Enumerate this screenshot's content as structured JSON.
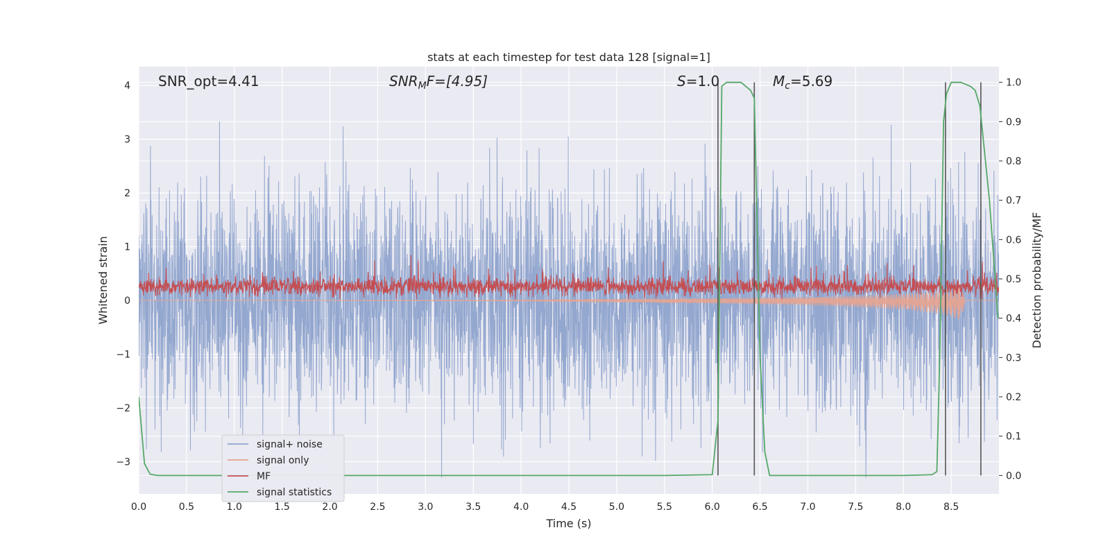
{
  "chart_data": {
    "type": "line",
    "title": "stats at each timestep for test data 128 [signal=1]",
    "xlabel": "Time (s)",
    "ylabel": "Whitened strain",
    "ylabel_right": "Detection probability/MF",
    "xlim": [
      0.0,
      9.0
    ],
    "ylim": [
      -3.6,
      4.35
    ],
    "ylim_right": [
      -0.047,
      1.04
    ],
    "x_ticks": [
      0.0,
      0.5,
      1.0,
      1.5,
      2.0,
      2.5,
      3.0,
      3.5,
      4.0,
      4.5,
      5.0,
      5.5,
      6.0,
      6.5,
      7.0,
      7.5,
      8.0,
      8.5
    ],
    "x_tick_labels": [
      "0.0",
      "0.5",
      "1.0",
      "1.5",
      "2.0",
      "2.5",
      "3.0",
      "3.5",
      "4.0",
      "4.5",
      "5.0",
      "5.5",
      "6.0",
      "6.5",
      "7.0",
      "7.5",
      "8.0",
      "8.5"
    ],
    "y_ticks": [
      -3,
      -2,
      -1,
      0,
      1,
      2,
      3,
      4
    ],
    "y_tick_labels": [
      "−3",
      "−2",
      "−1",
      "0",
      "1",
      "2",
      "3",
      "4"
    ],
    "y_ticks_right": [
      0.0,
      0.1,
      0.2,
      0.3,
      0.4,
      0.5,
      0.6,
      0.7,
      0.8,
      0.9,
      1.0
    ],
    "y_tick_labels_right": [
      "0.0",
      "0.1",
      "0.2",
      "0.3",
      "0.4",
      "0.5",
      "0.6",
      "0.7",
      "0.8",
      "0.9",
      "1.0"
    ],
    "grid": true,
    "legend_placement": "lower-left",
    "annotations": {
      "snr_opt": "SNR_opt=4.41",
      "snr_mf_base": "SNR",
      "snr_mf_sub": "M",
      "snr_mf_rest": "F=[4.95]",
      "s_label": "S",
      "s_rest": "=1.0",
      "mc_base": "M",
      "mc_sub": "c",
      "mc_rest": "=5.69"
    },
    "vertical_lines_x": [
      6.06,
      6.44,
      8.44,
      8.81
    ],
    "series": [
      {
        "name": "signal+ noise",
        "color": "#8ea3cc",
        "kind": "noise",
        "sigma": 1.0,
        "t_range": [
          0.0,
          9.0
        ]
      },
      {
        "name": "signal only",
        "color": "#e8a48f",
        "kind": "chirp",
        "envelope": {
          "x": [
            0.0,
            4.0,
            5.0,
            6.0,
            7.0,
            7.5,
            8.0,
            8.4,
            8.6,
            8.65,
            9.0
          ],
          "y": [
            0.0,
            0.01,
            0.03,
            0.05,
            0.08,
            0.11,
            0.15,
            0.22,
            0.32,
            0.0,
            0.0
          ]
        }
      },
      {
        "name": "MF",
        "color": "#c44e52",
        "kind": "mf",
        "center": 0.26,
        "spread": 0.15
      },
      {
        "name": "signal statistics",
        "color": "#55a868",
        "axis": "right",
        "x": [
          0.0,
          0.06,
          0.12,
          0.2,
          0.5,
          1.0,
          2.0,
          3.0,
          4.0,
          5.0,
          5.5,
          6.0,
          6.06,
          6.1,
          6.15,
          6.2,
          6.3,
          6.4,
          6.44,
          6.5,
          6.55,
          6.6,
          7.0,
          7.5,
          8.0,
          8.3,
          8.35,
          8.38,
          8.42,
          8.45,
          8.5,
          8.6,
          8.7,
          8.75,
          8.8,
          8.9,
          8.99
        ],
        "y": [
          0.2,
          0.03,
          0.003,
          0.0,
          0.0,
          0.0,
          0.0,
          0.0,
          0.0,
          0.0,
          0.0,
          0.002,
          0.14,
          0.99,
          1.0,
          1.0,
          1.0,
          0.98,
          0.96,
          0.3,
          0.06,
          0.0,
          0.0,
          0.0,
          0.0,
          0.002,
          0.01,
          0.3,
          0.9,
          0.97,
          1.0,
          1.0,
          0.99,
          0.98,
          0.94,
          0.7,
          0.4
        ]
      }
    ]
  }
}
